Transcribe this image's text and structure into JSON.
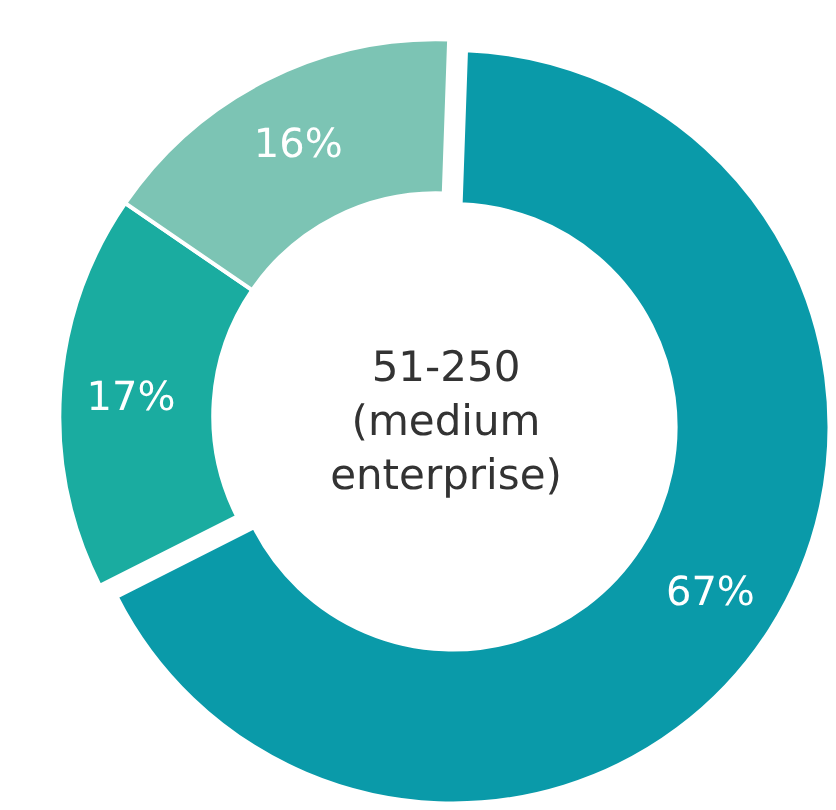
{
  "chart_data": {
    "type": "donut",
    "title": "51-250\n(medium\nenterprise)",
    "categories": [
      null,
      null,
      null
    ],
    "values": [
      67,
      17,
      16
    ],
    "value_labels": [
      "67%",
      "17%",
      "16%"
    ],
    "colors": [
      "#0a9aa9",
      "#1aaca0",
      "#7cc4b4"
    ]
  }
}
